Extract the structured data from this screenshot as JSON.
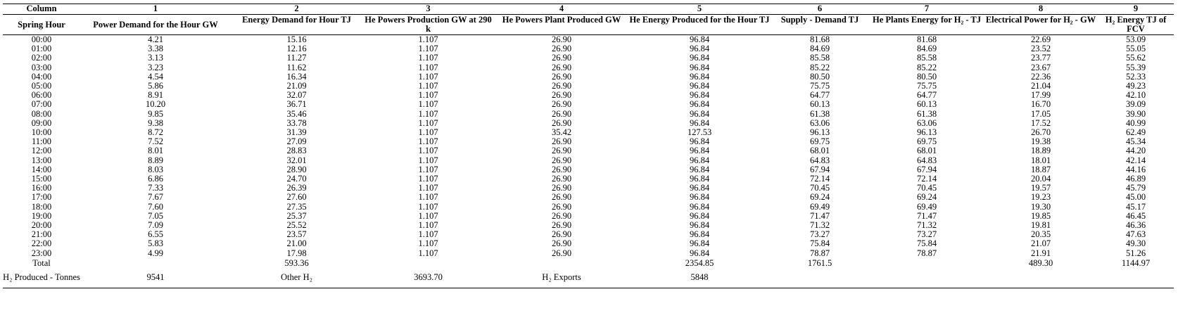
{
  "table": {
    "column_numbers": [
      "Column",
      "1",
      "2",
      "3",
      "4",
      "5",
      "6",
      "7",
      "8",
      "9"
    ],
    "headers": [
      "Spring Hour",
      "Power Demand for the Hour GW",
      "Energy Demand for Hour TJ",
      "He Powers Production GW at 290 k",
      "He Powers Plant Produced GW",
      "He Energy Produced for the Hour TJ",
      "Supply - Demand TJ",
      "He Plants Energy for H₂ - TJ",
      "Electrical Power for H₂ - GW",
      "H₂ Energy TJ of FCV"
    ],
    "rows": [
      [
        "00:00",
        "4.21",
        "15.16",
        "1.107",
        "26.90",
        "96.84",
        "81.68",
        "81.68",
        "22.69",
        "53.09"
      ],
      [
        "01:00",
        "3.38",
        "12.16",
        "1.107",
        "26.90",
        "96.84",
        "84.69",
        "84.69",
        "23.52",
        "55.05"
      ],
      [
        "02:00",
        "3.13",
        "11.27",
        "1.107",
        "26.90",
        "96.84",
        "85.58",
        "85.58",
        "23.77",
        "55.62"
      ],
      [
        "03:00",
        "3.23",
        "11.62",
        "1.107",
        "26.90",
        "96.84",
        "85.22",
        "85.22",
        "23.67",
        "55.39"
      ],
      [
        "04:00",
        "4.54",
        "16.34",
        "1.107",
        "26.90",
        "96.84",
        "80.50",
        "80.50",
        "22.36",
        "52.33"
      ],
      [
        "05:00",
        "5.86",
        "21.09",
        "1.107",
        "26.90",
        "96.84",
        "75.75",
        "75.75",
        "21.04",
        "49.23"
      ],
      [
        "06:00",
        "8.91",
        "32.07",
        "1.107",
        "26.90",
        "96.84",
        "64.77",
        "64.77",
        "17.99",
        "42.10"
      ],
      [
        "07:00",
        "10.20",
        "36.71",
        "1.107",
        "26.90",
        "96.84",
        "60.13",
        "60.13",
        "16.70",
        "39.09"
      ],
      [
        "08:00",
        "9.85",
        "35.46",
        "1.107",
        "26.90",
        "96.84",
        "61.38",
        "61.38",
        "17.05",
        "39.90"
      ],
      [
        "09:00",
        "9.38",
        "33.78",
        "1.107",
        "26.90",
        "96.84",
        "63.06",
        "63.06",
        "17.52",
        "40.99"
      ],
      [
        "10:00",
        "8.72",
        "31.39",
        "1.107",
        "35.42",
        "127.53",
        "96.13",
        "96.13",
        "26.70",
        "62.49"
      ],
      [
        "11:00",
        "7.52",
        "27.09",
        "1.107",
        "26.90",
        "96.84",
        "69.75",
        "69.75",
        "19.38",
        "45.34"
      ],
      [
        "12:00",
        "8.01",
        "28.83",
        "1.107",
        "26.90",
        "96.84",
        "68.01",
        "68.01",
        "18.89",
        "44.20"
      ],
      [
        "13:00",
        "8.89",
        "32.01",
        "1.107",
        "26.90",
        "96.84",
        "64.83",
        "64.83",
        "18.01",
        "42.14"
      ],
      [
        "14:00",
        "8.03",
        "28.90",
        "1.107",
        "26.90",
        "96.84",
        "67.94",
        "67.94",
        "18.87",
        "44.16"
      ],
      [
        "15:00",
        "6.86",
        "24.70",
        "1.107",
        "26.90",
        "96.84",
        "72.14",
        "72.14",
        "20.04",
        "46.89"
      ],
      [
        "16:00",
        "7.33",
        "26.39",
        "1.107",
        "26.90",
        "96.84",
        "70.45",
        "70.45",
        "19.57",
        "45.79"
      ],
      [
        "17:00",
        "7.67",
        "27.60",
        "1.107",
        "26.90",
        "96.84",
        "69.24",
        "69.24",
        "19.23",
        "45.00"
      ],
      [
        "18:00",
        "7.60",
        "27.35",
        "1.107",
        "26.90",
        "96.84",
        "69.49",
        "69.49",
        "19.30",
        "45.17"
      ],
      [
        "19:00",
        "7.05",
        "25.37",
        "1.107",
        "26.90",
        "96.84",
        "71.47",
        "71.47",
        "19.85",
        "46.45"
      ],
      [
        "20:00",
        "7.09",
        "25.52",
        "1.107",
        "26.90",
        "96.84",
        "71.32",
        "71.32",
        "19.81",
        "46.36"
      ],
      [
        "21:00",
        "6.55",
        "23.57",
        "1.107",
        "26.90",
        "96.84",
        "73.27",
        "73.27",
        "20.35",
        "47.63"
      ],
      [
        "22:00",
        "5.83",
        "21.00",
        "1.107",
        "26.90",
        "96.84",
        "75.84",
        "75.84",
        "21.07",
        "49.30"
      ],
      [
        "23:00",
        "4.99",
        "17.98",
        "1.107",
        "26.90",
        "96.84",
        "78.87",
        "78.87",
        "21.91",
        "51.26"
      ]
    ],
    "total_row": [
      "Total",
      "",
      "593.36",
      "",
      "",
      "2354.85",
      "1761.5",
      "",
      "489.30",
      "1144.97"
    ],
    "h2_row": [
      "H₂ Produced - Tonnes",
      "9541",
      "Other H₂",
      "3693.70",
      "H₂ Exports",
      "5848",
      "",
      "",
      "",
      ""
    ]
  }
}
